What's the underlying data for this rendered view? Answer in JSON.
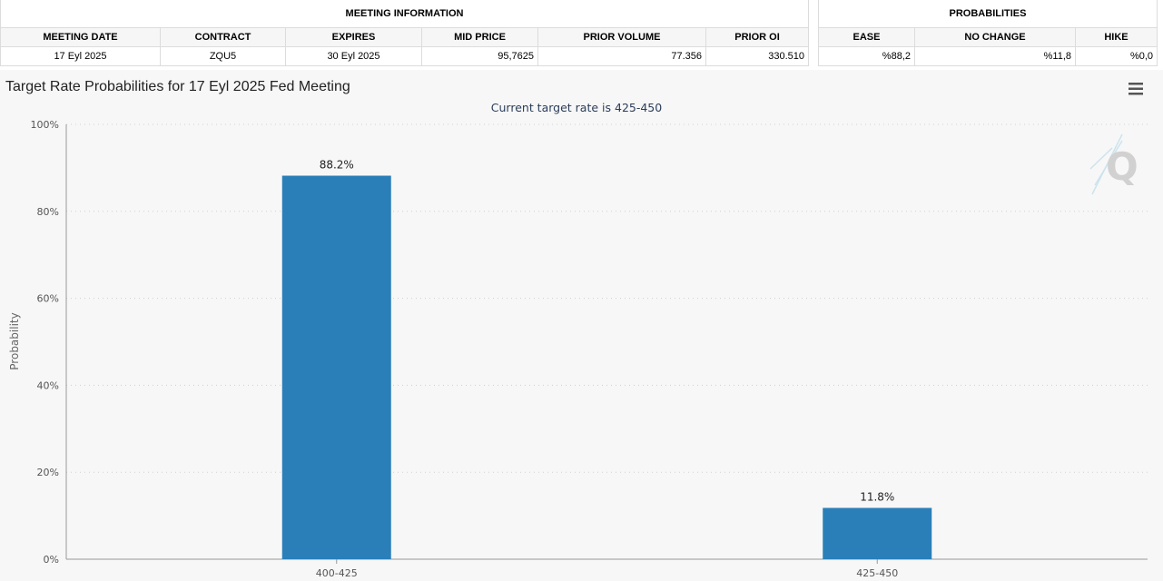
{
  "meeting_info": {
    "group_header": "MEETING INFORMATION",
    "columns": [
      "MEETING DATE",
      "CONTRACT",
      "EXPIRES",
      "MID PRICE",
      "PRIOR VOLUME",
      "PRIOR OI"
    ],
    "row": [
      "17 Eyl 2025",
      "ZQU5",
      "30 Eyl 2025",
      "95,7625",
      "77.356",
      "330.510"
    ]
  },
  "probabilities": {
    "group_header": "PROBABILITIES",
    "columns": [
      "EASE",
      "NO CHANGE",
      "HIKE"
    ],
    "row": [
      "%88,2",
      "%11,8",
      "%0,0"
    ]
  },
  "colors": {
    "bar": "#2a7fb8",
    "grid": "#d0d0d0",
    "axis": "#999999",
    "background": "#f7f7f7"
  },
  "icons": {
    "menu": "hamburger-menu-icon",
    "watermark": "q-logo-icon"
  },
  "chart_data": {
    "type": "bar",
    "title": "Target Rate Probabilities for 17 Eyl 2025 Fed Meeting",
    "subtitle": "Current target rate is 425-450",
    "ylabel": "Probability",
    "xlabel": "",
    "categories": [
      "400-425",
      "425-450"
    ],
    "values": [
      88.2,
      11.8
    ],
    "data_labels": [
      "88.2%",
      "11.8%"
    ],
    "ylim": [
      0,
      100
    ],
    "yticks": [
      0,
      20,
      40,
      60,
      80,
      100
    ],
    "ytick_labels": [
      "0%",
      "20%",
      "40%",
      "60%",
      "80%",
      "100%"
    ],
    "grid": true,
    "legend": "none"
  }
}
